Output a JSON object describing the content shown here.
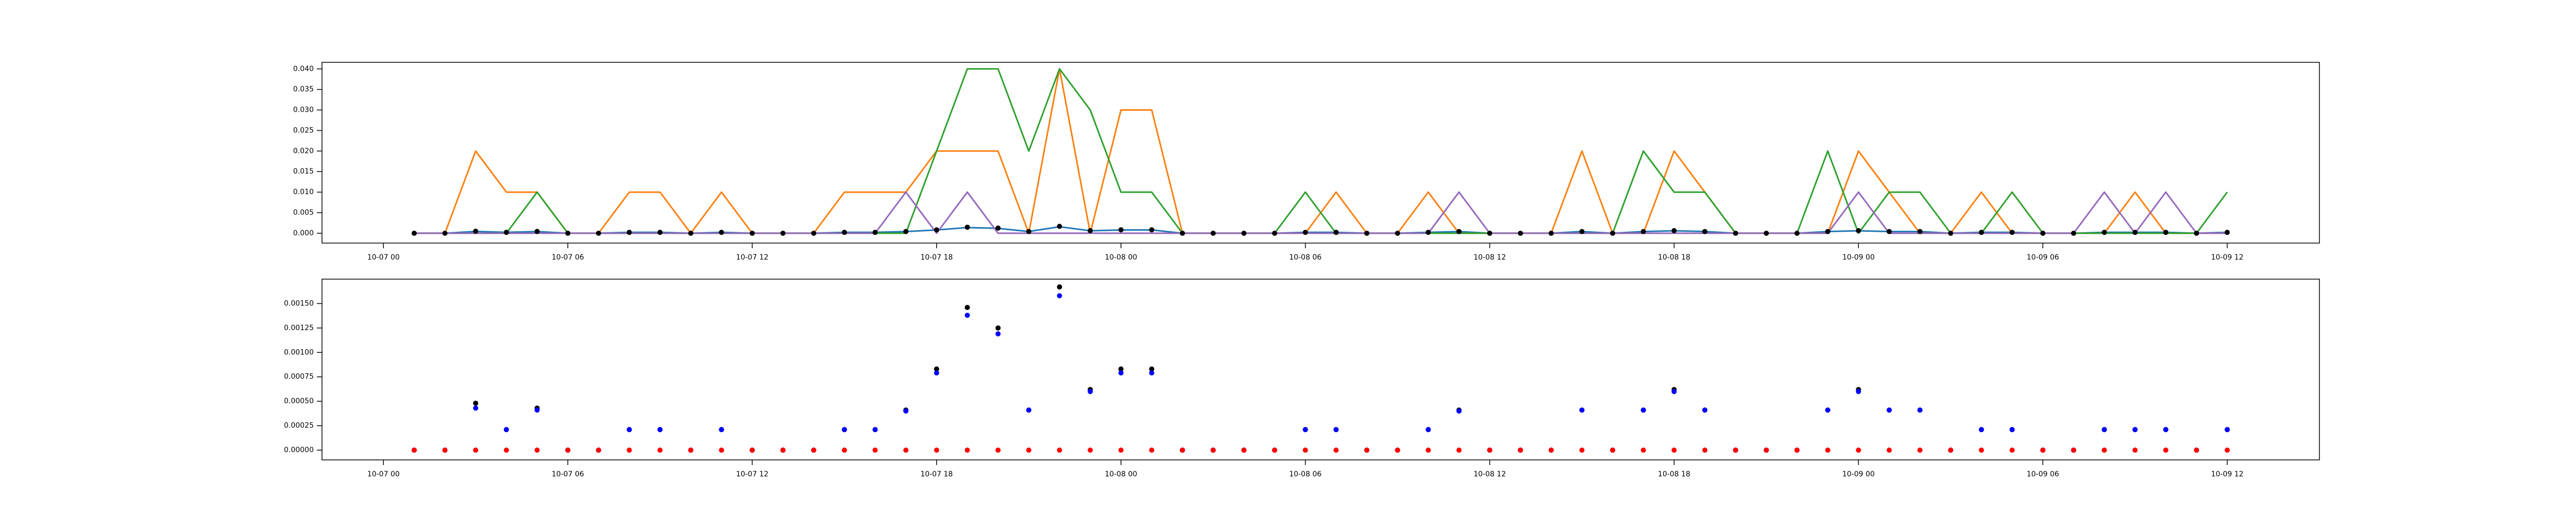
{
  "chart_data": [
    {
      "type": "line",
      "x": [
        "10-07 01",
        "10-07 02",
        "10-07 03",
        "10-07 04",
        "10-07 05",
        "10-07 06",
        "10-07 07",
        "10-07 08",
        "10-07 09",
        "10-07 10",
        "10-07 11",
        "10-07 12",
        "10-07 13",
        "10-07 14",
        "10-07 15",
        "10-07 16",
        "10-07 17",
        "10-07 18",
        "10-07 19",
        "10-07 20",
        "10-07 21",
        "10-07 22",
        "10-07 23",
        "10-08 00",
        "10-08 01",
        "10-08 02",
        "10-08 03",
        "10-08 04",
        "10-08 05",
        "10-08 06",
        "10-08 07",
        "10-08 08",
        "10-08 09",
        "10-08 10",
        "10-08 11",
        "10-08 12",
        "10-08 13",
        "10-08 14",
        "10-08 15",
        "10-08 16",
        "10-08 17",
        "10-08 18",
        "10-08 19",
        "10-08 20",
        "10-08 21",
        "10-08 22",
        "10-08 23",
        "10-09 00",
        "10-09 01",
        "10-09 02",
        "10-09 03",
        "10-09 04",
        "10-09 05",
        "10-09 06",
        "10-09 07",
        "10-09 08",
        "10-09 09",
        "10-09 10",
        "10-09 11",
        "10-09 12"
      ],
      "series": [
        {
          "type": "line",
          "color": "#1f77b4",
          "values": [
            0,
            0,
            0.00043,
            0.00021,
            0.00041,
            0,
            0,
            0.00021,
            0.00021,
            0,
            0.00021,
            0,
            0,
            0,
            0.00021,
            0.00021,
            0.0004,
            0.00079,
            0.00138,
            0.00119,
            0.00041,
            0.00158,
            0.0006,
            0.00079,
            0.00079,
            0,
            0,
            0,
            0,
            0.00021,
            0.00021,
            0,
            0,
            0.00021,
            0.0004,
            0,
            0,
            0,
            0.00041,
            0,
            0.00041,
            0.0006,
            0.00041,
            0,
            0,
            0,
            0.00041,
            0.0006,
            0.00041,
            0.00041,
            0,
            0.00021,
            0.00021,
            0,
            0,
            0.00021,
            0.00021,
            0.00021,
            0,
            0.00021
          ]
        },
        {
          "type": "line",
          "color": "#ff7f0e",
          "values": [
            0,
            0,
            0.02,
            0.01,
            0.01,
            0,
            0,
            0.01,
            0.01,
            0,
            0.01,
            0,
            0,
            0,
            0.01,
            0.01,
            0.01,
            0.02,
            0.02,
            0.02,
            0,
            0.04,
            0,
            0.03,
            0.03,
            0,
            0,
            0,
            0,
            0,
            0.01,
            0,
            0,
            0.01,
            0,
            0,
            0,
            0,
            0.02,
            0,
            0,
            0.02,
            0.01,
            0,
            0,
            0,
            0,
            0.02,
            0.01,
            0,
            0,
            0.01,
            0,
            0,
            0,
            0,
            0.01,
            0,
            0,
            0
          ]
        },
        {
          "type": "line",
          "color": "#2ca02c",
          "values": [
            0,
            0,
            0,
            0,
            0.01,
            0,
            0,
            0,
            0,
            0,
            0,
            0,
            0,
            0,
            0,
            0,
            0,
            0.02,
            0.04,
            0.04,
            0.02,
            0.04,
            0.03,
            0.01,
            0.01,
            0,
            0,
            0,
            0,
            0.01,
            0,
            0,
            0,
            0,
            0,
            0,
            0,
            0,
            0,
            0,
            0.02,
            0.01,
            0.01,
            0,
            0,
            0,
            0.02,
            0,
            0.01,
            0.01,
            0,
            0,
            0.01,
            0,
            0,
            0,
            0,
            0,
            0,
            0.01
          ]
        },
        {
          "type": "line",
          "color": "#9467bd",
          "values": [
            0,
            0,
            0,
            0,
            0,
            0,
            0,
            0,
            0,
            0,
            0,
            0,
            0,
            0,
            0,
            0,
            0.01,
            0,
            0.01,
            0,
            0,
            0,
            0,
            0,
            0,
            0,
            0,
            0,
            0,
            0,
            0,
            0,
            0,
            0,
            0.01,
            0,
            0,
            0,
            0,
            0,
            0,
            0,
            0,
            0,
            0,
            0,
            0,
            0.01,
            0,
            0,
            0,
            0,
            0,
            0,
            0,
            0.01,
            0,
            0.01,
            0,
            0
          ]
        },
        {
          "type": "scatter",
          "color": "#000000",
          "values": [
            0,
            0,
            0.00048,
            0.00021,
            0.00043,
            0,
            0,
            0.00021,
            0.00021,
            0,
            0.00021,
            0,
            0,
            0,
            0.00021,
            0.00021,
            0.00041,
            0.00083,
            0.00146,
            0.00125,
            0.00041,
            0.00167,
            0.00062,
            0.00083,
            0.00083,
            0,
            0,
            0,
            0,
            0.00021,
            0.00021,
            0,
            0,
            0.00021,
            0.00041,
            0,
            0,
            0,
            0.00041,
            0,
            0.00041,
            0.00062,
            0.00041,
            0,
            0,
            0,
            0.00041,
            0.00062,
            0.00041,
            0.00041,
            0,
            0.00021,
            0.00021,
            0,
            0,
            0.00021,
            0.00021,
            0.00021,
            0,
            0.00021
          ]
        }
      ],
      "xlim": [
        "10-06 22",
        "10-09 15"
      ],
      "xticks": [
        "10-07 00",
        "10-07 06",
        "10-07 12",
        "10-07 18",
        "10-08 00",
        "10-08 06",
        "10-08 12",
        "10-08 18",
        "10-09 00",
        "10-09 06",
        "10-09 12"
      ],
      "ylim": [
        -0.0024,
        0.0416
      ],
      "yticks": [
        {
          "value": 0,
          "label": "0.000"
        },
        {
          "value": 0.005,
          "label": "0.005"
        },
        {
          "value": 0.01,
          "label": "0.010"
        },
        {
          "value": 0.015,
          "label": "0.015"
        },
        {
          "value": 0.02,
          "label": "0.020"
        },
        {
          "value": 0.025,
          "label": "0.025"
        },
        {
          "value": 0.03,
          "label": "0.030"
        },
        {
          "value": 0.035,
          "label": "0.035"
        },
        {
          "value": 0.04,
          "label": "0.040"
        }
      ]
    },
    {
      "type": "scatter",
      "x": [
        "10-07 01",
        "10-07 02",
        "10-07 03",
        "10-07 04",
        "10-07 05",
        "10-07 06",
        "10-07 07",
        "10-07 08",
        "10-07 09",
        "10-07 10",
        "10-07 11",
        "10-07 12",
        "10-07 13",
        "10-07 14",
        "10-07 15",
        "10-07 16",
        "10-07 17",
        "10-07 18",
        "10-07 19",
        "10-07 20",
        "10-07 21",
        "10-07 22",
        "10-07 23",
        "10-08 00",
        "10-08 01",
        "10-08 02",
        "10-08 03",
        "10-08 04",
        "10-08 05",
        "10-08 06",
        "10-08 07",
        "10-08 08",
        "10-08 09",
        "10-08 10",
        "10-08 11",
        "10-08 12",
        "10-08 13",
        "10-08 14",
        "10-08 15",
        "10-08 16",
        "10-08 17",
        "10-08 18",
        "10-08 19",
        "10-08 20",
        "10-08 21",
        "10-08 22",
        "10-08 23",
        "10-09 00",
        "10-09 01",
        "10-09 02",
        "10-09 03",
        "10-09 04",
        "10-09 05",
        "10-09 06",
        "10-09 07",
        "10-09 08",
        "10-09 09",
        "10-09 10",
        "10-09 11",
        "10-09 12"
      ],
      "series": [
        {
          "color": "#000000",
          "values": [
            0,
            0,
            0.00048,
            0.00021,
            0.00043,
            0,
            0,
            0.00021,
            0.00021,
            0,
            0.00021,
            0,
            0,
            0,
            0.00021,
            0.00021,
            0.00041,
            0.00083,
            0.00146,
            0.00125,
            0.00041,
            0.00167,
            0.00062,
            0.00083,
            0.00083,
            0,
            0,
            0,
            0,
            0.00021,
            0.00021,
            0,
            0,
            0.00021,
            0.00041,
            0,
            0,
            0,
            0.00041,
            0,
            0.00041,
            0.00062,
            0.00041,
            0,
            0,
            0,
            0.00041,
            0.00062,
            0.00041,
            0.00041,
            0,
            0.00021,
            0.00021,
            0,
            0,
            0.00021,
            0.00021,
            0.00021,
            0,
            0.00021
          ]
        },
        {
          "color": "#0000ff",
          "values": [
            0,
            0,
            0.00043,
            0.00021,
            0.00041,
            0,
            0,
            0.00021,
            0.00021,
            0,
            0.00021,
            0,
            0,
            0,
            0.00021,
            0.00021,
            0.0004,
            0.00079,
            0.00138,
            0.00119,
            0.00041,
            0.00158,
            0.0006,
            0.00079,
            0.00079,
            0,
            0,
            0,
            0,
            0.00021,
            0.00021,
            0,
            0,
            0.00021,
            0.0004,
            0,
            0,
            0,
            0.00041,
            0,
            0.00041,
            0.0006,
            0.00041,
            0,
            0,
            0,
            0.00041,
            0.0006,
            0.00041,
            0.00041,
            0,
            0.00021,
            0.00021,
            0,
            0,
            0.00021,
            0.00021,
            0.00021,
            0,
            0.00021
          ]
        },
        {
          "color": "#ff0000",
          "values": [
            0,
            0,
            0,
            0,
            0,
            0,
            0,
            0,
            0,
            0,
            0,
            0,
            0,
            0,
            0,
            0,
            0,
            0,
            0,
            0,
            0,
            0,
            0,
            0,
            0,
            0,
            0,
            0,
            0,
            0,
            0,
            0,
            0,
            0,
            0,
            0,
            0,
            0,
            0,
            0,
            0,
            0,
            0,
            0,
            0,
            0,
            0,
            0,
            0,
            0,
            0,
            0,
            0,
            0,
            0,
            0,
            0,
            0,
            0,
            0
          ]
        }
      ],
      "xlim": [
        "10-06 22",
        "10-09 15"
      ],
      "xticks": [
        "10-07 00",
        "10-07 06",
        "10-07 12",
        "10-07 18",
        "10-08 00",
        "10-08 06",
        "10-08 12",
        "10-08 18",
        "10-09 00",
        "10-09 06",
        "10-09 12"
      ],
      "ylim": [
        -0.0001,
        0.00175
      ],
      "yticks": [
        {
          "value": 0,
          "label": "0.00000"
        },
        {
          "value": 0.00025,
          "label": "0.00025"
        },
        {
          "value": 0.0005,
          "label": "0.00050"
        },
        {
          "value": 0.00075,
          "label": "0.00075"
        },
        {
          "value": 0.001,
          "label": "0.00100"
        },
        {
          "value": 0.00125,
          "label": "0.00125"
        },
        {
          "value": 0.0015,
          "label": "0.00150"
        }
      ]
    }
  ]
}
